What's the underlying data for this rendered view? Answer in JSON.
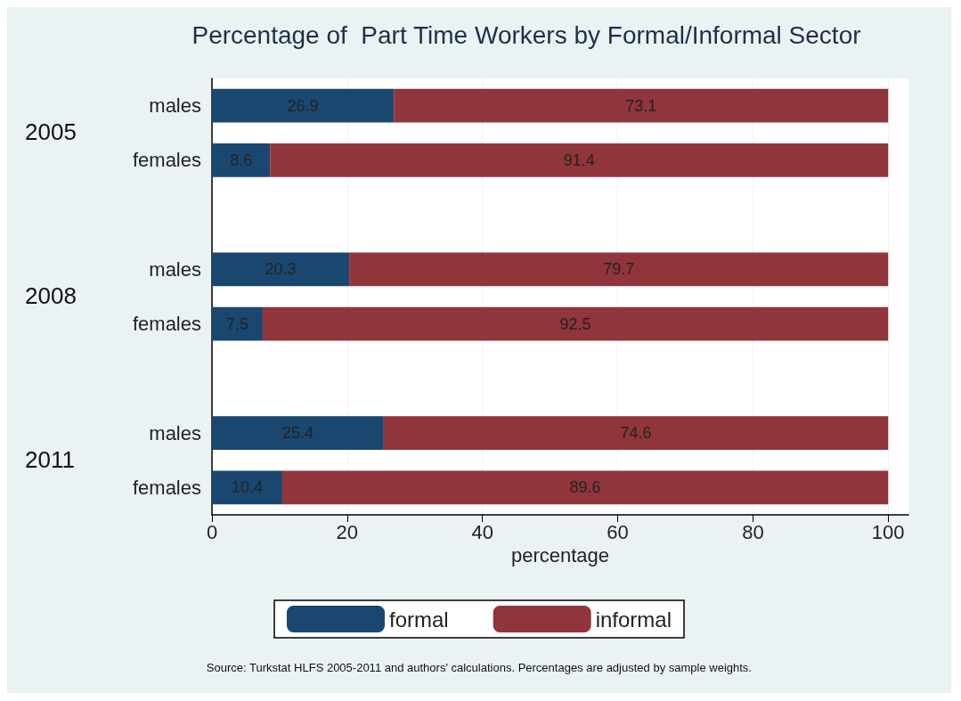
{
  "chart_data": {
    "type": "bar",
    "orientation": "horizontal",
    "stacked": true,
    "title": "Percentage of  Part Time Workers by Formal/Informal Sector",
    "xlabel": "percentage",
    "categories": [
      "males",
      "females",
      null,
      "males",
      "females",
      null,
      "males",
      "females"
    ],
    "series": [
      {
        "name": "formal",
        "color": "#1a476f",
        "values": [
          26.9,
          8.6,
          null,
          20.3,
          7.5,
          null,
          25.4,
          10.4
        ]
      },
      {
        "name": "informal",
        "color": "#90353b",
        "values": [
          73.1,
          91.4,
          null,
          79.7,
          92.5,
          null,
          74.6,
          89.6
        ]
      }
    ],
    "annotations": [
      "2005",
      "2008",
      "2011",
      "Source: Turkstat HLFS 2005-2011 and authors' calculations. Percentages are adjusted by sample weights."
    ],
    "xlim": [
      0,
      103
    ],
    "xticks": [
      0,
      20,
      40,
      60,
      80,
      100
    ],
    "grid": "x",
    "legend": "bottom",
    "data_labels": true
  }
}
